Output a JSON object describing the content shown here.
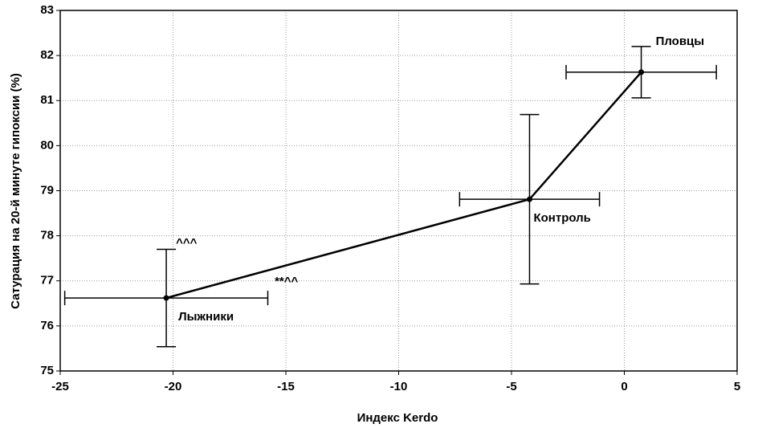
{
  "chart_data": {
    "type": "line",
    "x_label": "Индекс Kerdo",
    "y_label": "Сатурация на 20-й минуте гипоксии (%)",
    "x": [
      -20.3,
      -4.2,
      0.75
    ],
    "values": [
      76.62,
      78.81,
      81.63
    ],
    "xerr": [
      4.5,
      3.1,
      3.33
    ],
    "yerr": [
      1.08,
      1.88,
      0.57
    ],
    "point_labels": [
      "Лыжники",
      "Контроль",
      "Пловцы"
    ],
    "annotations": [
      "^^^",
      "**^^"
    ],
    "color": "#000000",
    "xlim": [
      -25,
      5
    ],
    "xticks": [
      -25,
      -20,
      -15,
      -10,
      -5,
      0,
      5
    ],
    "ylim": [
      75,
      83
    ],
    "yticks": [
      75,
      76,
      77,
      78,
      79,
      80,
      81,
      82,
      83
    ],
    "grid": true
  }
}
